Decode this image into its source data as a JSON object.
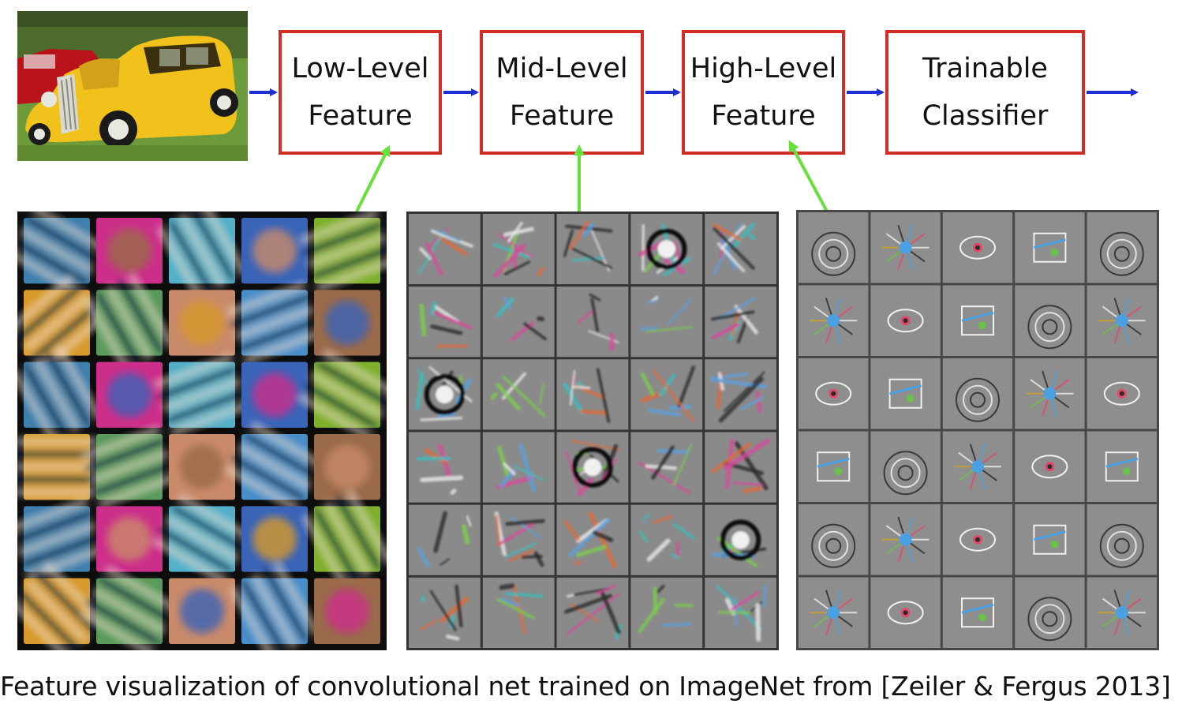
{
  "pipeline": {
    "stages": [
      {
        "line1": "Low-Level",
        "line2": "Feature"
      },
      {
        "line1": "Mid-Level",
        "line2": "Feature"
      },
      {
        "line1": "High-Level",
        "line2": "Feature"
      },
      {
        "line1": "Trainable",
        "line2": "Classifier"
      }
    ]
  },
  "colors": {
    "box_border": "#d12c26",
    "flow_arrow": "#1f2fd6",
    "link_arrow": "#66e03a",
    "low_grid_bg": "#0d0d0d",
    "mid_grid_bg": "#333333",
    "high_grid_bg": "#474747"
  },
  "caption": "Feature visualization of convolutional net trained on ImageNet from [Zeiler & Fergus 2013]"
}
